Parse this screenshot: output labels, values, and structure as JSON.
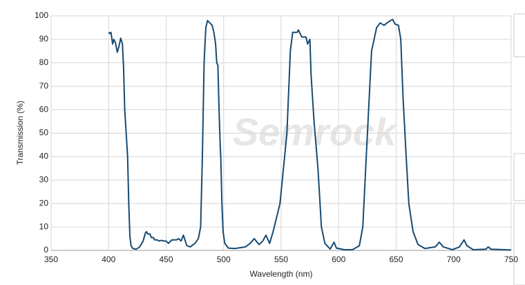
{
  "chart_data": {
    "type": "line",
    "watermark": "Semrock",
    "xlabel": "Wavelength (nm)",
    "ylabel": "Transmission (%)",
    "xlim": [
      350,
      750
    ],
    "xticks": [
      350,
      400,
      450,
      500,
      550,
      600,
      650,
      700,
      750
    ],
    "ylim": [
      0,
      100
    ],
    "yticks": [
      0,
      10,
      20,
      30,
      40,
      50,
      60,
      70,
      80,
      90,
      100
    ],
    "grid": true,
    "series": [
      {
        "color": "#164a72",
        "x": [
          400,
          401,
          402,
          403.5,
          404.5,
          406,
          407.5,
          409,
          410.5,
          412,
          413,
          414,
          415.5,
          416.5,
          417.5,
          418.5,
          419.5,
          421,
          424,
          427,
          430,
          432,
          433,
          434,
          436,
          437,
          439,
          440,
          442,
          444,
          446,
          448,
          450,
          452,
          455,
          457,
          459,
          461,
          463,
          465,
          466,
          468,
          471,
          475,
          478,
          480,
          481.5,
          483,
          484.5,
          486,
          488,
          490,
          491.5,
          493,
          494,
          495,
          496,
          497,
          497.5,
          498.5,
          499.5,
          501,
          504,
          510,
          519,
          523,
          526.6,
          530.8,
          534,
          536.8,
          540,
          543,
          549,
          555,
          558,
          560,
          564,
          565,
          568,
          571.6,
          573,
          575,
          576,
          578.6,
          582,
          585,
          588,
          592.6,
          596,
          598,
          605,
          612,
          618,
          621,
          624,
          628.6,
          633,
          636,
          639.5,
          642,
          645,
          647,
          649,
          652,
          654,
          656,
          658.7,
          661,
          664.7,
          669,
          675,
          684,
          687.5,
          691,
          699,
          705,
          709,
          711.5,
          717,
          728,
          730,
          732.6,
          750
        ],
        "values": [
          93,
          92.5,
          93,
          88,
          90,
          88.5,
          84.5,
          87,
          90.5,
          88,
          78,
          60,
          48,
          40,
          20,
          6,
          2,
          0.8,
          0.5,
          1.5,
          4,
          7.5,
          8,
          7,
          7,
          5.5,
          5.5,
          4.5,
          4.5,
          4,
          4.3,
          4,
          4,
          3,
          4.5,
          4.5,
          4.5,
          5,
          4,
          6.5,
          5,
          2,
          1.5,
          3,
          5,
          10,
          40,
          80,
          95,
          98,
          97,
          96,
          93,
          88,
          80,
          79,
          60,
          45,
          40,
          20,
          8,
          3,
          1,
          0.8,
          1.5,
          3,
          5,
          2.5,
          4,
          6.5,
          3,
          8,
          20,
          50,
          85,
          93,
          93,
          94,
          91,
          91,
          88,
          90,
          75,
          55,
          35,
          10,
          3,
          0.6,
          3.5,
          1,
          0.3,
          0.3,
          2,
          10,
          40,
          85,
          95,
          97,
          96,
          97,
          98,
          98.5,
          96.5,
          96,
          90,
          65,
          40,
          20,
          8,
          2.5,
          0.8,
          1.5,
          3.5,
          1.5,
          0.3,
          1.5,
          4.5,
          2,
          0.3,
          0.5,
          1.5,
          0.5,
          0.2
        ]
      }
    ]
  }
}
